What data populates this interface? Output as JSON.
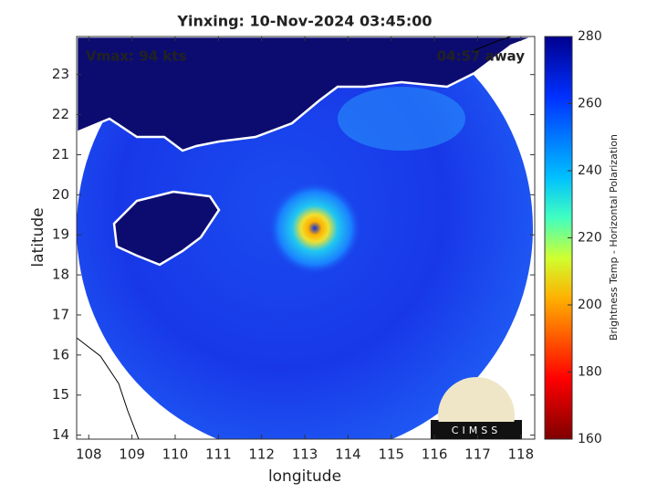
{
  "header": {
    "title": "Yinxing: 10-Nov-2024 03:45:00"
  },
  "annotations": {
    "vmax": "Vmax: 94 kts",
    "time_away": "04:57 away"
  },
  "map": {
    "xlabel": "longitude",
    "ylabel": "latitude",
    "xlim": [
      107.72,
      118.32
    ],
    "ylim": [
      13.9,
      23.95
    ],
    "xticks": [
      108,
      109,
      110,
      111,
      112,
      113,
      114,
      115,
      116,
      117,
      118
    ],
    "yticks": [
      14,
      15,
      16,
      17,
      18,
      19,
      20,
      21,
      22,
      23
    ]
  },
  "colorbar": {
    "label": "Brightness Temp - Horizontal Polarization",
    "lim": [
      160,
      280
    ],
    "ticks": [
      160,
      180,
      200,
      220,
      240,
      260,
      280
    ]
  },
  "logo": {
    "text": "CIMSS"
  }
}
